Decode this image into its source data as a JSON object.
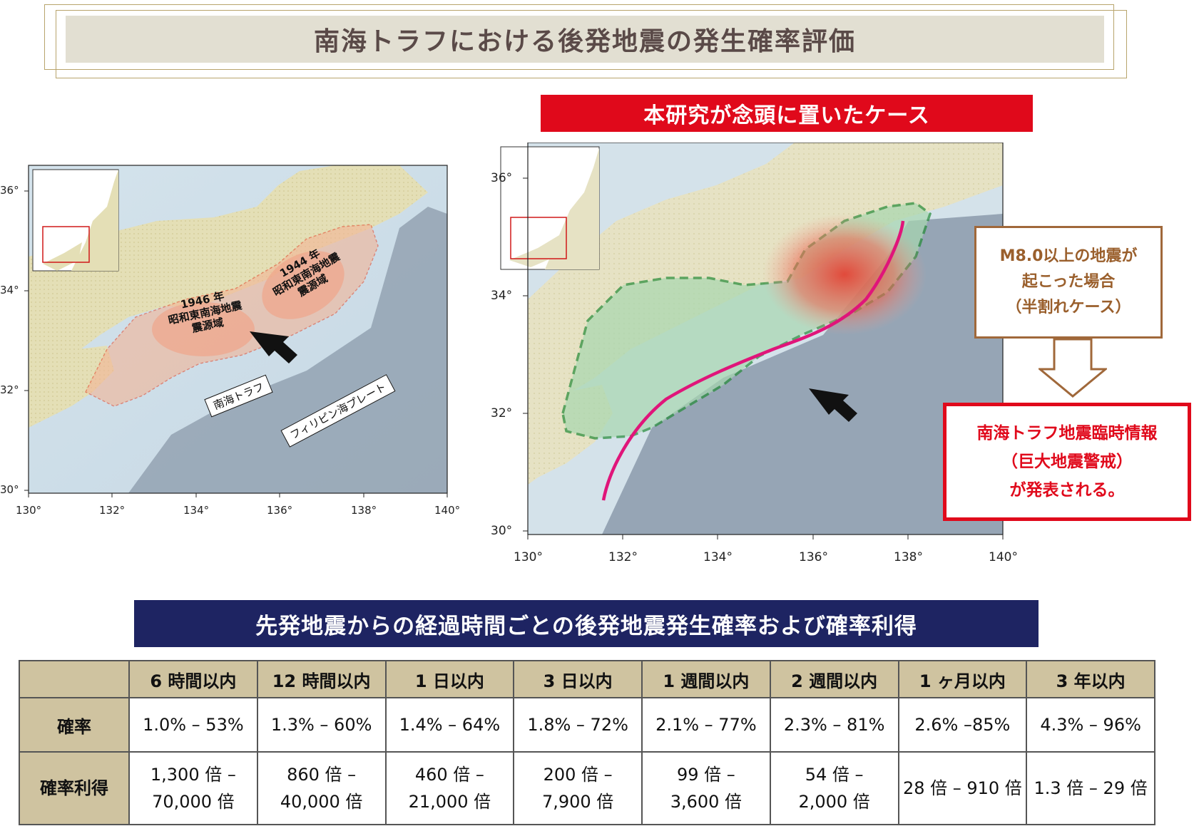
{
  "title": "南海トラフにおける後発地震の発生確率評価",
  "case_banner": "本研究が念頭に置いたケース",
  "map_left": {
    "x_ticks": [
      "130°",
      "132°",
      "134°",
      "136°",
      "138°",
      "140°"
    ],
    "y_ticks": [
      "36°",
      "34°",
      "32°",
      "30°"
    ],
    "zone_1946": [
      "1946 年",
      "昭和東南海地震",
      "震源域"
    ],
    "zone_1944": [
      "1944 年",
      "昭和東南海地震",
      "震源域"
    ],
    "trough_label": "南海トラフ",
    "plate_label": "フィリピン海プレート"
  },
  "map_right": {
    "x_ticks": [
      "130°",
      "132°",
      "134°",
      "136°",
      "138°",
      "140°"
    ],
    "y_ticks": [
      "36°",
      "34°",
      "32°",
      "30°"
    ]
  },
  "callout_case": [
    "M8.0以上の地震が",
    "起こった場合",
    "（半割れケース）"
  ],
  "callout_info": [
    "南海トラフ地震臨時情報",
    "（巨大地震警戒）",
    "が発表される。"
  ],
  "table_banner": "先発地震からの経過時間ごとの後発地震発生確率および確率利得",
  "table": {
    "headers": [
      "",
      "6 時間以内",
      "12 時間以内",
      "1 日以内",
      "3 日以内",
      "1 週間以内",
      "2 週間以内",
      "1 ヶ月以内",
      "3 年以内"
    ],
    "probability": {
      "label": "確率",
      "values": [
        "1.0% – 53%",
        "1.3% – 60%",
        "1.4%  – 64%",
        "1.8% – 72%",
        "2.1% – 77%",
        "2.3% – 81%",
        "2.6% –85%",
        "4.3% – 96%"
      ]
    },
    "gain": {
      "label": "確率利得",
      "values": [
        [
          "1,300 倍 –",
          "70,000 倍"
        ],
        [
          "860 倍 –",
          "40,000 倍"
        ],
        [
          "460 倍 –",
          "21,000 倍"
        ],
        [
          "200 倍 –",
          "7,900 倍"
        ],
        [
          "99 倍 –",
          "3,600 倍"
        ],
        [
          "54 倍 –",
          "2,000 倍"
        ],
        [
          "28 倍 – 910 倍"
        ],
        [
          "1.3 倍 – 29 倍"
        ]
      ]
    }
  },
  "colors": {
    "red": "#e0091b",
    "navy": "#1e2462",
    "table_header": "#cfc3a0",
    "title_bg": "#e2dfd2",
    "brown": "#a0683a"
  }
}
